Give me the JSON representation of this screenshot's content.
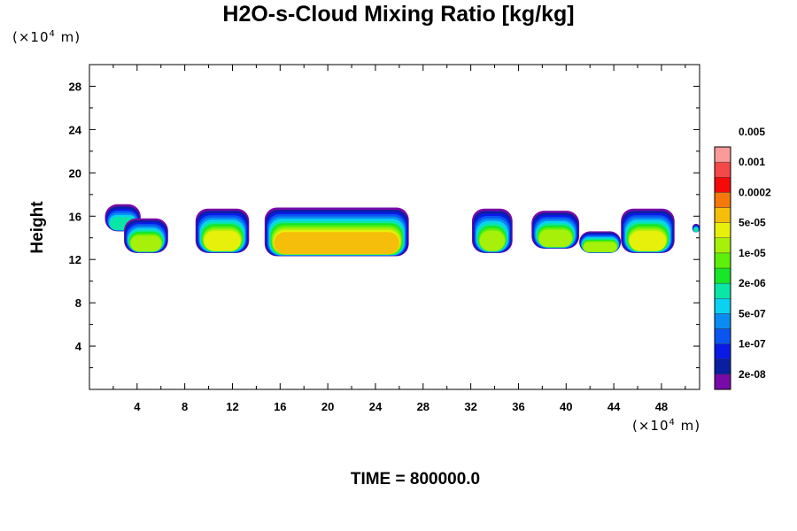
{
  "chart_data": {
    "type": "heatmap",
    "title": "H2O-s-Cloud Mixing Ratio [kg/kg]",
    "ylabel": "Height",
    "x_unit_base": "(×10",
    "x_unit_exp": "4",
    "x_unit_tail": " m)",
    "y_unit_base": "(×10",
    "y_unit_exp": "4",
    "y_unit_tail": " m)",
    "footer": "TIME = 800000.0",
    "xlim": [
      0,
      51.2
    ],
    "ylim": [
      0,
      30
    ],
    "x_ticks": [
      4,
      8,
      12,
      16,
      20,
      24,
      28,
      32,
      36,
      40,
      44,
      48
    ],
    "y_ticks": [
      4,
      8,
      12,
      16,
      20,
      24,
      28
    ],
    "colorbar": {
      "colors": [
        "#7a0aa8",
        "#0a1fa0",
        "#0a1ae6",
        "#0a55f2",
        "#0a8cf2",
        "#0ad2f0",
        "#0ae6a6",
        "#18e628",
        "#5cf00a",
        "#a6f00a",
        "#e6f00a",
        "#f5be0a",
        "#f5780a",
        "#f50a0a",
        "#f54848",
        "#fa9a9a"
      ],
      "labels": [
        "2e-08",
        "1e-07",
        "5e-07",
        "2e-06",
        "1e-05",
        "5e-05",
        "0.0002",
        "0.001",
        "0.005"
      ]
    },
    "clouds": [
      {
        "x0": 1.3,
        "x1": 4.3,
        "base": 14.6,
        "top": 17.1,
        "level": 6
      },
      {
        "x0": 2.9,
        "x1": 6.6,
        "base": 12.6,
        "top": 15.8,
        "level": 9
      },
      {
        "x0": 8.9,
        "x1": 13.4,
        "base": 12.6,
        "top": 16.7,
        "level": 10
      },
      {
        "x0": 14.7,
        "x1": 26.8,
        "base": 12.3,
        "top": 16.8,
        "level": 11
      },
      {
        "x0": 32.1,
        "x1": 35.5,
        "base": 12.6,
        "top": 16.7,
        "level": 9
      },
      {
        "x0": 37.1,
        "x1": 41.1,
        "base": 13.0,
        "top": 16.5,
        "level": 9
      },
      {
        "x0": 41.1,
        "x1": 44.6,
        "base": 12.6,
        "top": 14.6,
        "level": 9
      },
      {
        "x0": 44.6,
        "x1": 49.1,
        "base": 12.6,
        "top": 16.7,
        "level": 10
      },
      {
        "x0": 50.6,
        "x1": 51.2,
        "base": 14.5,
        "top": 15.3,
        "level": 6
      }
    ]
  }
}
